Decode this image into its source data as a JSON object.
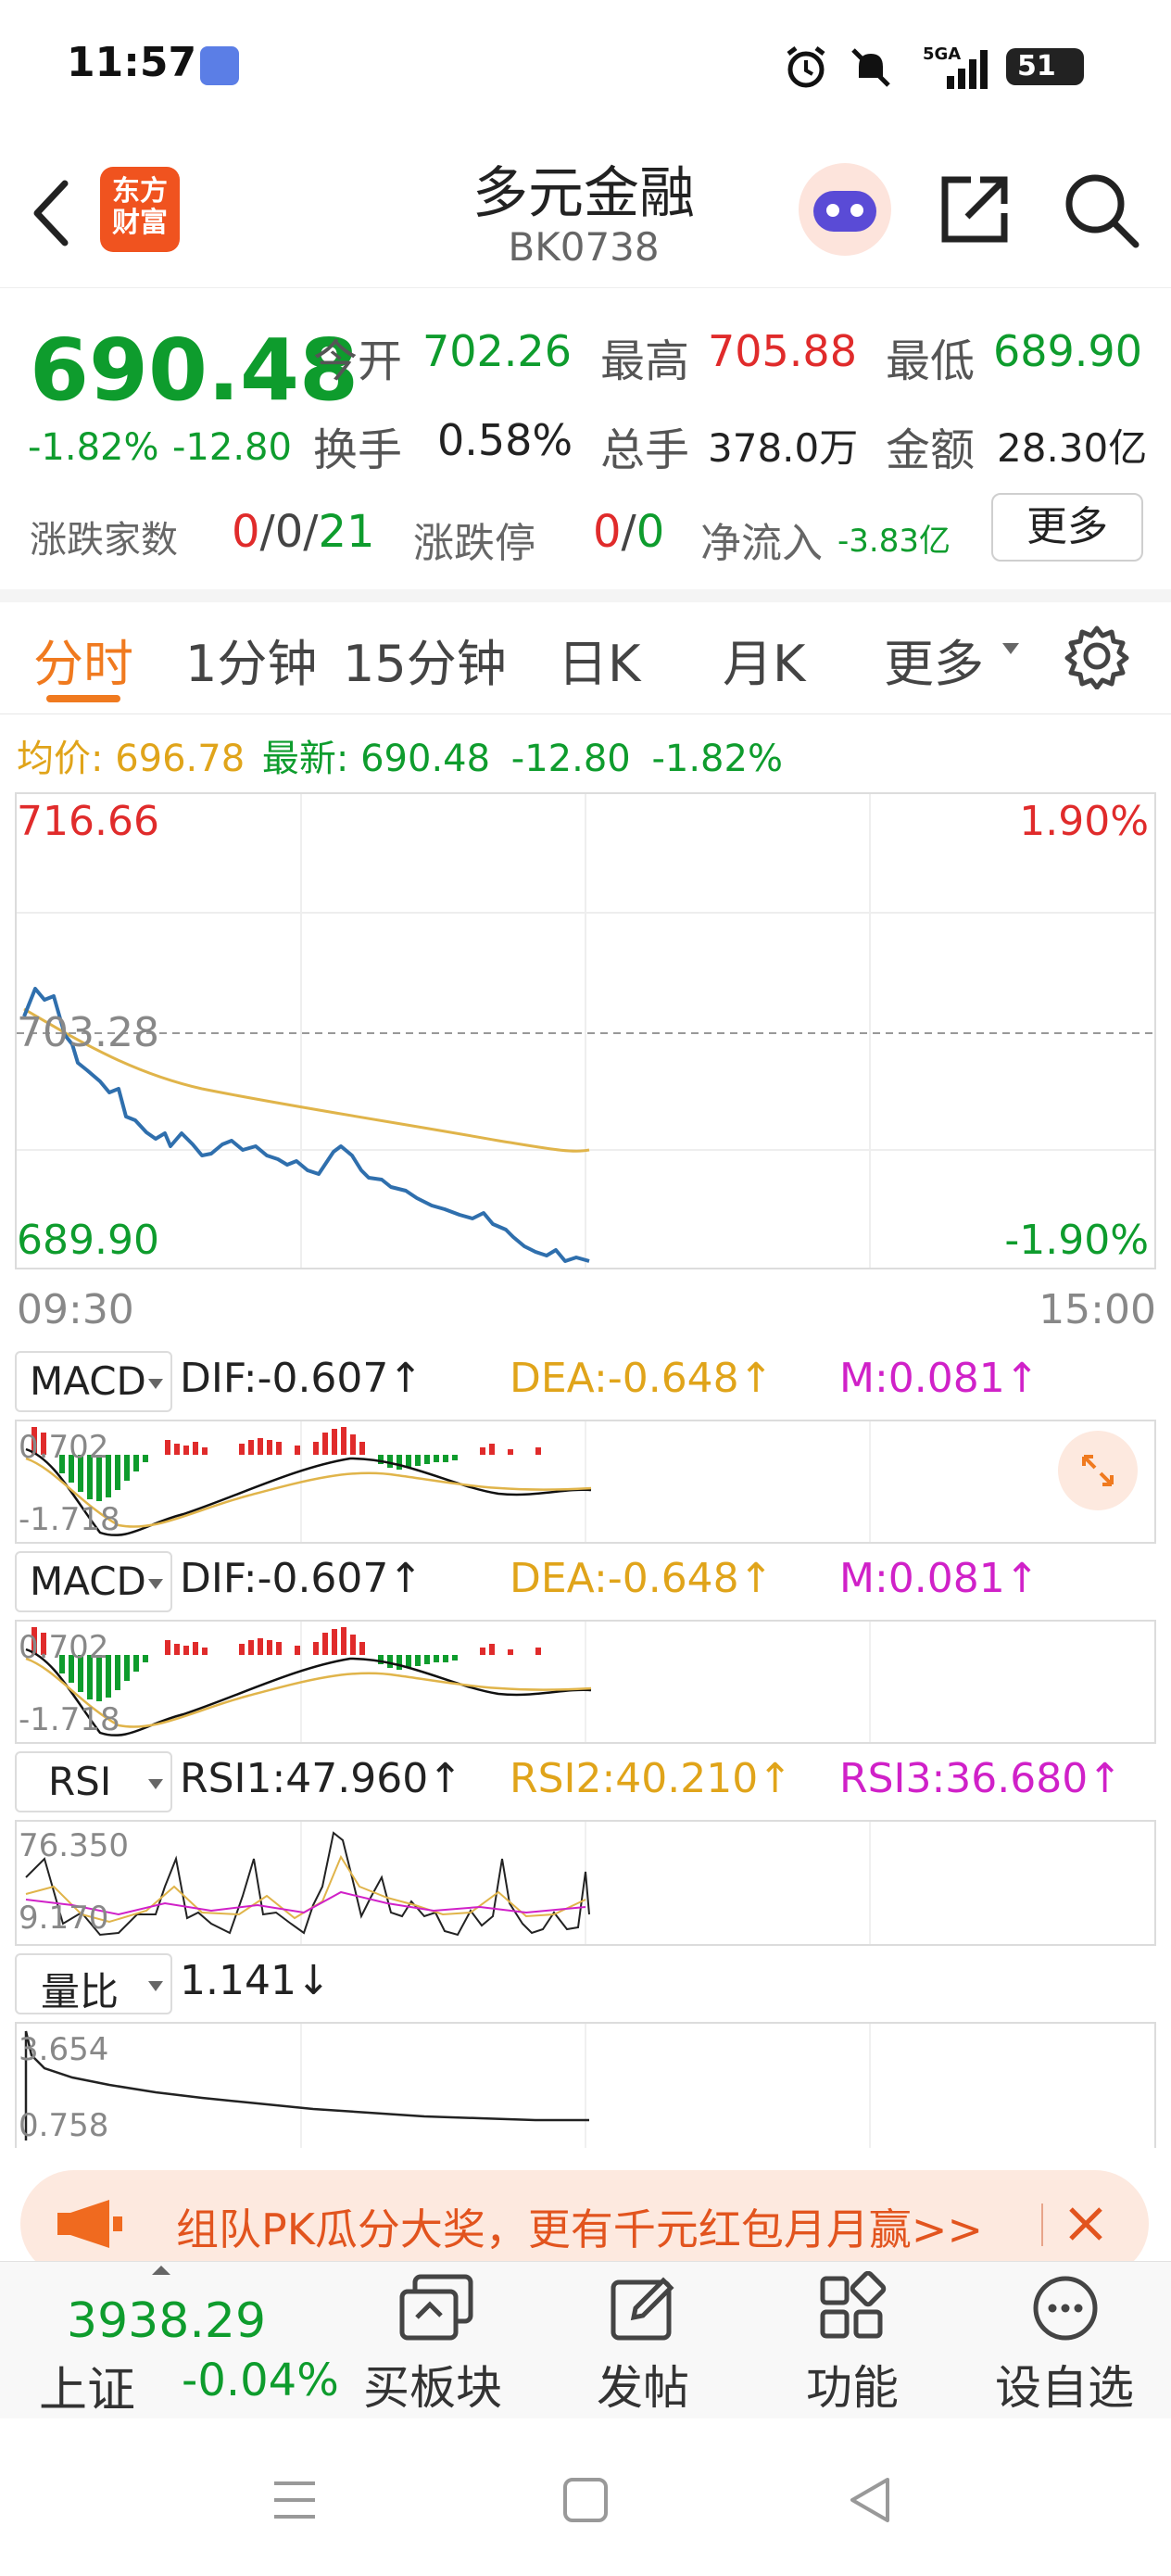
{
  "status_bar": {
    "time": "11:57",
    "battery": "51",
    "network": "5GA"
  },
  "header": {
    "logo_line1": "东方",
    "logo_line2": "财富",
    "title": "多元金融",
    "code": "BK0738"
  },
  "quote": {
    "price": "690.48",
    "change_pct": "-1.82%",
    "change": "-12.80",
    "open_label": "今开",
    "open": "702.26",
    "high_label": "最高",
    "high": "705.88",
    "low_label": "最低",
    "low": "689.90",
    "turnover_label": "换手",
    "turnover": "0.58%",
    "volume_label": "总手",
    "volume": "378.0万",
    "amount_label": "金额",
    "amount": "28.30亿",
    "breadth_label": "涨跌家数",
    "breadth_up": "0",
    "breadth_flat": "0",
    "breadth_down": "21",
    "limit_label": "涨跌停",
    "limit_up": "0",
    "limit_down": "0",
    "netflow_label": "净流入",
    "netflow": "-3.83亿",
    "more_button": "更多"
  },
  "tabs": [
    "分时",
    "1分钟",
    "15分钟",
    "日K",
    "月K",
    "更多"
  ],
  "intraday": {
    "avg_label": "均价:",
    "avg": "696.78",
    "latest_label": "最新:",
    "latest": "690.48",
    "latest_change": "-12.80",
    "latest_pct": "-1.82%",
    "y_max": "716.66",
    "y_mid": "703.28",
    "y_min": "689.90",
    "pct_max": "1.90%",
    "pct_min": "-1.90%",
    "time_start": "09:30",
    "time_end": "15:00"
  },
  "macd1": {
    "selector": "MACD",
    "dif": "DIF:-0.607↑",
    "dea": "DEA:-0.648↑",
    "m": "M:0.081↑",
    "y_top": "0.702",
    "y_bottom": "-1.718"
  },
  "macd2": {
    "selector": "MACD",
    "dif": "DIF:-0.607↑",
    "dea": "DEA:-0.648↑",
    "m": "M:0.081↑",
    "y_top": "0.702",
    "y_bottom": "-1.718"
  },
  "rsi": {
    "selector": "RSI",
    "rsi1": "RSI1:47.960↑",
    "rsi2": "RSI2:40.210↑",
    "rsi3": "RSI3:36.680↑",
    "y_top": "76.350",
    "y_bottom": "9.170"
  },
  "volume_ratio": {
    "selector": "量比",
    "value": "1.141↓",
    "y_top": "3.654",
    "y_bottom": "0.758"
  },
  "banner": {
    "text": "组队PK瓜分大奖，更有千元红包月月赢>>"
  },
  "bottom_bar": {
    "index_value": "3938.29",
    "index_name": "上证",
    "index_pct": "-0.04%",
    "buy_label": "买板块",
    "post_label": "发帖",
    "function_label": "功能",
    "watch_label": "设自选"
  },
  "colors": {
    "up": "#e02b2b",
    "down": "#0e9c2d",
    "accent": "#f07a1f",
    "avg_line": "#e0a41a",
    "price_line": "#2f6fad"
  }
}
